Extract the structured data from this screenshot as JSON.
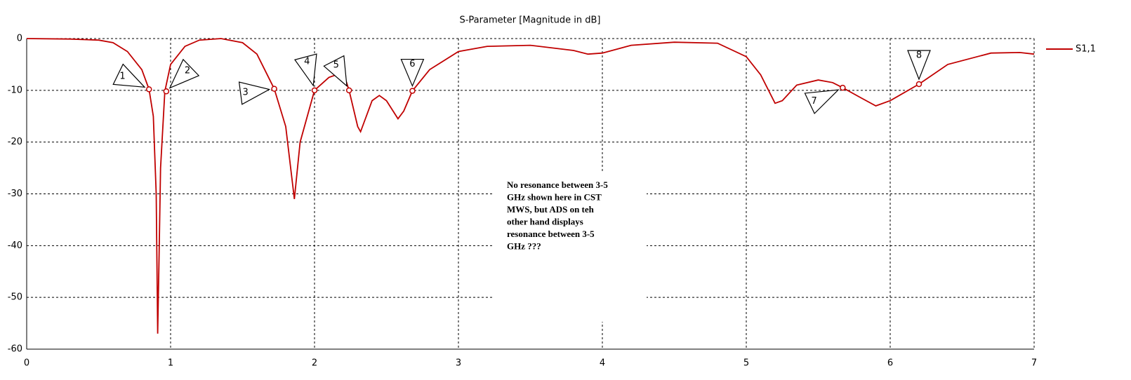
{
  "chart_data": {
    "type": "line",
    "title": "S-Parameter [Magnitude in dB]",
    "x": [
      0,
      0.3,
      0.5,
      0.6,
      0.7,
      0.8,
      0.85,
      0.88,
      0.9,
      0.91,
      0.92,
      0.93,
      0.96,
      1.0,
      1.1,
      1.2,
      1.35,
      1.5,
      1.6,
      1.72,
      1.8,
      1.86,
      1.9,
      2.0,
      2.1,
      2.2,
      2.24,
      2.3,
      2.32,
      2.4,
      2.45,
      2.5,
      2.58,
      2.62,
      2.68,
      2.8,
      3.0,
      3.2,
      3.5,
      3.8,
      3.9,
      4.0,
      4.2,
      4.5,
      4.8,
      5.0,
      5.1,
      5.2,
      5.25,
      5.35,
      5.5,
      5.6,
      5.67,
      5.8,
      5.9,
      6.0,
      6.2,
      6.4,
      6.7,
      6.9,
      7.0
    ],
    "series": [
      {
        "name": "S1,1",
        "color": "#c00000",
        "values": [
          0,
          -0.1,
          -0.3,
          -0.8,
          -2.5,
          -6,
          -9.8,
          -15,
          -30,
          -57,
          -42,
          -25,
          -10.2,
          -5,
          -1.5,
          -0.3,
          0,
          -0.8,
          -3,
          -9.7,
          -17,
          -31,
          -20,
          -10,
          -7.5,
          -6.5,
          -10,
          -17,
          -18,
          -12,
          -11,
          -12,
          -15.5,
          -14,
          -10.1,
          -6,
          -2.5,
          -1.5,
          -1.3,
          -2.3,
          -3,
          -2.8,
          -1.3,
          -0.7,
          -0.9,
          -3.5,
          -7,
          -12.5,
          -12,
          -9,
          -8,
          -8.5,
          -9.5,
          -11.5,
          -13,
          -12,
          -8.8,
          -5,
          -2.8,
          -2.7,
          -3
        ]
      }
    ],
    "markers": [
      {
        "label": "1",
        "x": 0.85,
        "y": -9.8
      },
      {
        "label": "2",
        "x": 0.97,
        "y": -10.2
      },
      {
        "label": "3",
        "x": 1.72,
        "y": -9.7
      },
      {
        "label": "4",
        "x": 2.0,
        "y": -10
      },
      {
        "label": "5",
        "x": 2.24,
        "y": -10
      },
      {
        "label": "6",
        "x": 2.68,
        "y": -10.1
      },
      {
        "label": "7",
        "x": 5.67,
        "y": -9.5
      },
      {
        "label": "8",
        "x": 6.2,
        "y": -8.8
      }
    ],
    "annotation_lines": [
      "No resonance between 3-5",
      "GHz shown here in CST",
      "MWS, but ADS on teh",
      "other hand displays",
      "resonance between 3-5",
      "GHz ???"
    ],
    "xlim": [
      0,
      7
    ],
    "xticks": [
      0,
      1,
      2,
      3,
      4,
      5,
      6,
      7
    ],
    "ylim": [
      -60,
      0
    ],
    "yticks": [
      0,
      -10,
      -20,
      -30,
      -40,
      -50,
      -60
    ],
    "grid": true
  }
}
